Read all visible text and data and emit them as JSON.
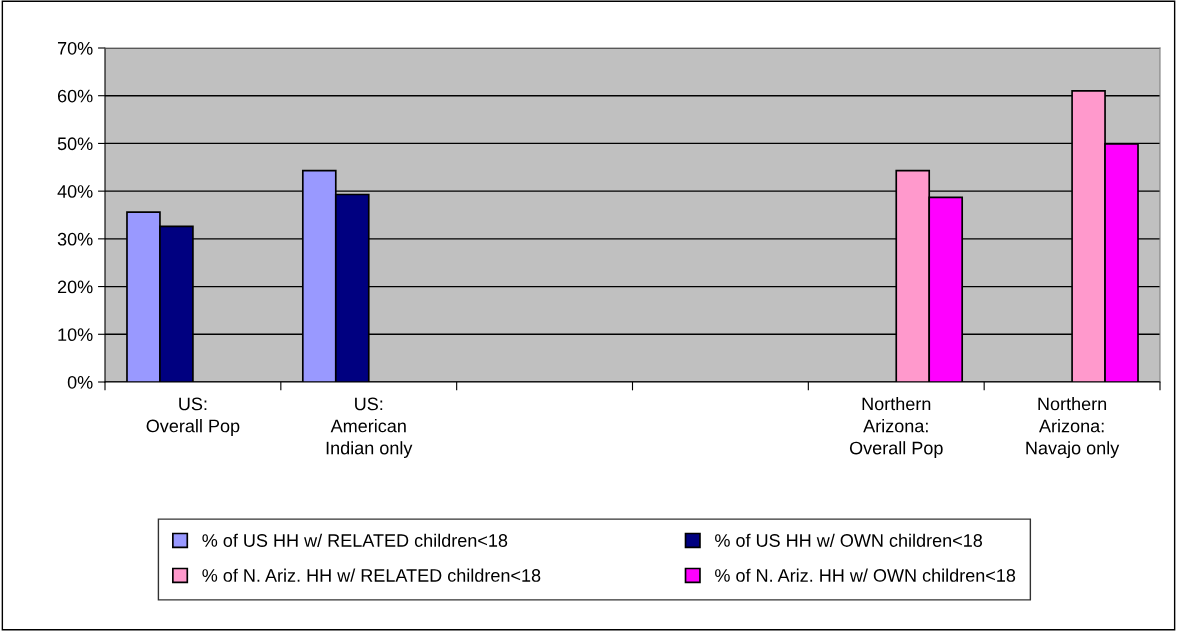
{
  "chart_data": {
    "type": "bar",
    "categories": [
      "US:\nOverall Pop",
      "US:\nAmerican\nIndian only",
      null,
      null,
      "Northern\nArizona:\nOverall Pop",
      "Northern\nArizona:\nNavajo only"
    ],
    "series": [
      {
        "name": "% of US HH w/ RELATED children<18",
        "color": "#9999ff",
        "values": [
          35.6,
          44.3,
          null,
          null,
          null,
          null
        ]
      },
      {
        "name": "% of US HH w/ OWN children<18",
        "color": "#000080",
        "values": [
          32.6,
          39.3,
          null,
          null,
          null,
          null
        ]
      },
      {
        "name": "% of N. Ariz. HH w/ RELATED children<18",
        "color": "#ff99cc",
        "values": [
          null,
          null,
          null,
          null,
          44.3,
          61.0
        ]
      },
      {
        "name": "% of N. Ariz. HH w/ OWN children<18",
        "color": "#ff00ff",
        "values": [
          null,
          null,
          null,
          null,
          38.7,
          49.9
        ]
      }
    ],
    "ylim": [
      0,
      70
    ],
    "yticks": [
      {
        "value": 0,
        "label": "0%"
      },
      {
        "value": 10,
        "label": "10%"
      },
      {
        "value": 20,
        "label": "20%"
      },
      {
        "value": 30,
        "label": "30%"
      },
      {
        "value": 40,
        "label": "40%"
      },
      {
        "value": 50,
        "label": "50%"
      },
      {
        "value": 60,
        "label": "60%"
      },
      {
        "value": 70,
        "label": "70%"
      }
    ],
    "grid": "y",
    "legend": "bottom"
  }
}
